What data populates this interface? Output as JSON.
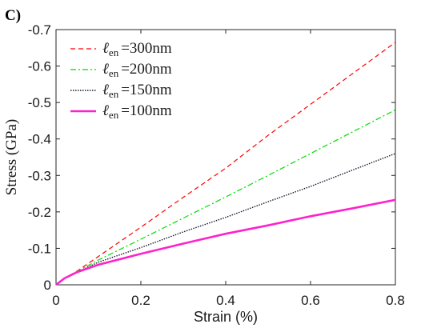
{
  "panel_label": "C)",
  "chart_data": {
    "type": "line",
    "xlabel": "Strain (%)",
    "ylabel": "Stress (GPa)",
    "xlim": [
      0,
      0.8
    ],
    "ylim": [
      0,
      -0.7
    ],
    "x_ticks": [
      0,
      0.2,
      0.4,
      0.6,
      0.8
    ],
    "x_tick_labels": [
      "0",
      "0.2",
      "0.4",
      "0.6",
      "0.8"
    ],
    "y_ticks": [
      0,
      -0.1,
      -0.2,
      -0.3,
      -0.4,
      -0.5,
      -0.6,
      -0.7
    ],
    "y_tick_labels": [
      "0",
      "-0.1",
      "-0.2",
      "-0.3",
      "-0.4",
      "-0.5",
      "-0.6",
      "-0.7"
    ],
    "grid": false,
    "legend_position": "top-left",
    "series": [
      {
        "label_symbol": "ℓ",
        "label_sub": "en",
        "label_value": "=300nm",
        "color": "#ff0000",
        "style": "dashed",
        "x": [
          0,
          0.02,
          0.05,
          0.1,
          0.2,
          0.3,
          0.4,
          0.5,
          0.6,
          0.7,
          0.8
        ],
        "y": [
          0,
          -0.018,
          -0.038,
          -0.078,
          -0.158,
          -0.24,
          -0.32,
          -0.41,
          -0.495,
          -0.58,
          -0.665
        ]
      },
      {
        "label_symbol": "ℓ",
        "label_sub": "en",
        "label_value": "=200nm",
        "color": "#00dd00",
        "style": "dashdot",
        "x": [
          0,
          0.02,
          0.05,
          0.1,
          0.2,
          0.3,
          0.4,
          0.5,
          0.6,
          0.7,
          0.8
        ],
        "y": [
          0,
          -0.018,
          -0.037,
          -0.068,
          -0.125,
          -0.183,
          -0.241,
          -0.3,
          -0.36,
          -0.42,
          -0.48
        ]
      },
      {
        "label_symbol": "ℓ",
        "label_sub": "en",
        "label_value": "=150nm",
        "color": "#1a1a2e",
        "style": "dotted",
        "x": [
          0,
          0.02,
          0.05,
          0.1,
          0.2,
          0.3,
          0.4,
          0.5,
          0.6,
          0.7,
          0.8
        ],
        "y": [
          0,
          -0.018,
          -0.035,
          -0.062,
          -0.102,
          -0.145,
          -0.185,
          -0.228,
          -0.27,
          -0.315,
          -0.36
        ]
      },
      {
        "label_symbol": "ℓ",
        "label_sub": "en",
        "label_value": "=100nm",
        "color": "#ff22cc",
        "style": "solid",
        "x": [
          0,
          0.02,
          0.05,
          0.1,
          0.2,
          0.3,
          0.4,
          0.5,
          0.6,
          0.7,
          0.8
        ],
        "y": [
          0,
          -0.018,
          -0.035,
          -0.055,
          -0.085,
          -0.113,
          -0.14,
          -0.163,
          -0.188,
          -0.21,
          -0.233
        ]
      }
    ]
  }
}
